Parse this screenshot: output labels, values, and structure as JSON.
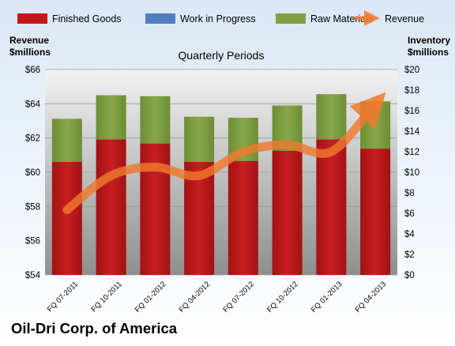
{
  "colors": {
    "finished_goods": "#c0191b",
    "work_in_progress": "#4f7fbf",
    "raw_materials": "#7fa140",
    "revenue": "#f0792e",
    "plot_bg_top": "#f2f2f2",
    "plot_bg_bottom": "#8f8f8f",
    "page_bg_top": "#dbe7f5",
    "page_bg_bottom": "#ffffff"
  },
  "chart_data": {
    "type": "bar",
    "stacked": true,
    "title": "Quarterly Periods",
    "footer_title": "Oil-Dri Corp. of America",
    "ylabel_left": "Revenue\n$millions",
    "ylabel_right": "Inventory\n$millions",
    "legend_position": "top",
    "grid": true,
    "categories": [
      "FQ 07-2011",
      "FQ 10-2011",
      "FQ 01-2012",
      "FQ 04-2012",
      "FQ 07-2012",
      "FQ 10-2012",
      "FQ 01-2013",
      "FQ 04-2013"
    ],
    "left_axis": {
      "min": 54,
      "max": 66,
      "step": 2,
      "tick_labels": [
        "$54",
        "$56",
        "$58",
        "$60",
        "$62",
        "$64",
        "$66"
      ]
    },
    "right_axis": {
      "min": 0,
      "max": 20,
      "step": 2,
      "tick_labels": [
        "$0",
        "$2",
        "$4",
        "$6",
        "$8",
        "$10",
        "$12",
        "$14",
        "$16",
        "$18",
        "$20"
      ]
    },
    "series": [
      {
        "name": "Finished Goods",
        "axis": "right",
        "kind": "bar",
        "color_key": "finished_goods",
        "values": [
          11.0,
          13.2,
          12.8,
          11.0,
          11.1,
          12.1,
          13.2,
          12.3
        ]
      },
      {
        "name": "Work in Progress",
        "axis": "right",
        "kind": "bar",
        "color_key": "work_in_progress",
        "values": [
          0,
          0,
          0,
          0,
          0,
          0,
          0,
          0
        ]
      },
      {
        "name": "Raw Materials",
        "axis": "right",
        "kind": "bar",
        "color_key": "raw_materials",
        "values": [
          4.2,
          4.3,
          4.6,
          4.4,
          4.2,
          4.4,
          4.4,
          4.6
        ]
      },
      {
        "name": "Revenue",
        "axis": "left",
        "kind": "line",
        "color_key": "revenue",
        "values": [
          57.8,
          59.8,
          60.3,
          59.8,
          61.2,
          61.6,
          61.2,
          64.0
        ]
      }
    ]
  }
}
